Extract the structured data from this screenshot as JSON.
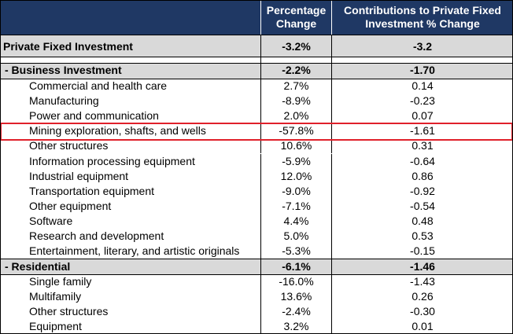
{
  "table": {
    "headers": {
      "col1": "",
      "col2_line1": "Percentage",
      "col2_line2": "Change",
      "col3_line1": "Contributions to Private Fixed",
      "col3_line2": "Investment % Change"
    },
    "total": {
      "label": "Private Fixed Investment",
      "pct": "-3.2%",
      "contrib": "-3.2"
    },
    "business": {
      "label": " - Business Investment",
      "pct": "-2.2%",
      "contrib": "-1.70",
      "items": [
        {
          "label": "Commercial and health care",
          "pct": "2.7%",
          "contrib": "0.14"
        },
        {
          "label": "Manufacturing",
          "pct": "-8.9%",
          "contrib": "-0.23"
        },
        {
          "label": "Power and communication",
          "pct": "2.0%",
          "contrib": "0.07"
        },
        {
          "label": "Mining exploration, shafts, and wells",
          "pct": "-57.8%",
          "contrib": "-1.61"
        },
        {
          "label": "Other structures",
          "pct": "10.6%",
          "contrib": "0.31"
        },
        {
          "label": "Information processing equipment",
          "pct": "-5.9%",
          "contrib": "-0.64"
        },
        {
          "label": "Industrial equipment",
          "pct": "12.0%",
          "contrib": "0.86"
        },
        {
          "label": "Transportation equipment",
          "pct": "-9.0%",
          "contrib": "-0.92"
        },
        {
          "label": "Other equipment",
          "pct": "-7.1%",
          "contrib": "-0.54"
        },
        {
          "label": "Software",
          "pct": "4.4%",
          "contrib": "0.48"
        },
        {
          "label": "Research and development",
          "pct": "5.0%",
          "contrib": "0.53"
        },
        {
          "label": "Entertainment, literary, and artistic originals",
          "pct": "-5.3%",
          "contrib": "-0.15"
        }
      ]
    },
    "residential": {
      "label": " - Residential",
      "pct": "-6.1%",
      "contrib": "-1.46",
      "items": [
        {
          "label": "Single family",
          "pct": "-16.0%",
          "contrib": "-1.43"
        },
        {
          "label": "Multifamily",
          "pct": "13.6%",
          "contrib": "0.26"
        },
        {
          "label": "Other structures",
          "pct": "-2.4%",
          "contrib": "-0.30"
        },
        {
          "label": "Equipment",
          "pct": "3.2%",
          "contrib": "0.01"
        }
      ]
    },
    "highlight_color": "#e0202a",
    "header_color": "#1f3864",
    "shade_color": "#d9d9d9"
  }
}
